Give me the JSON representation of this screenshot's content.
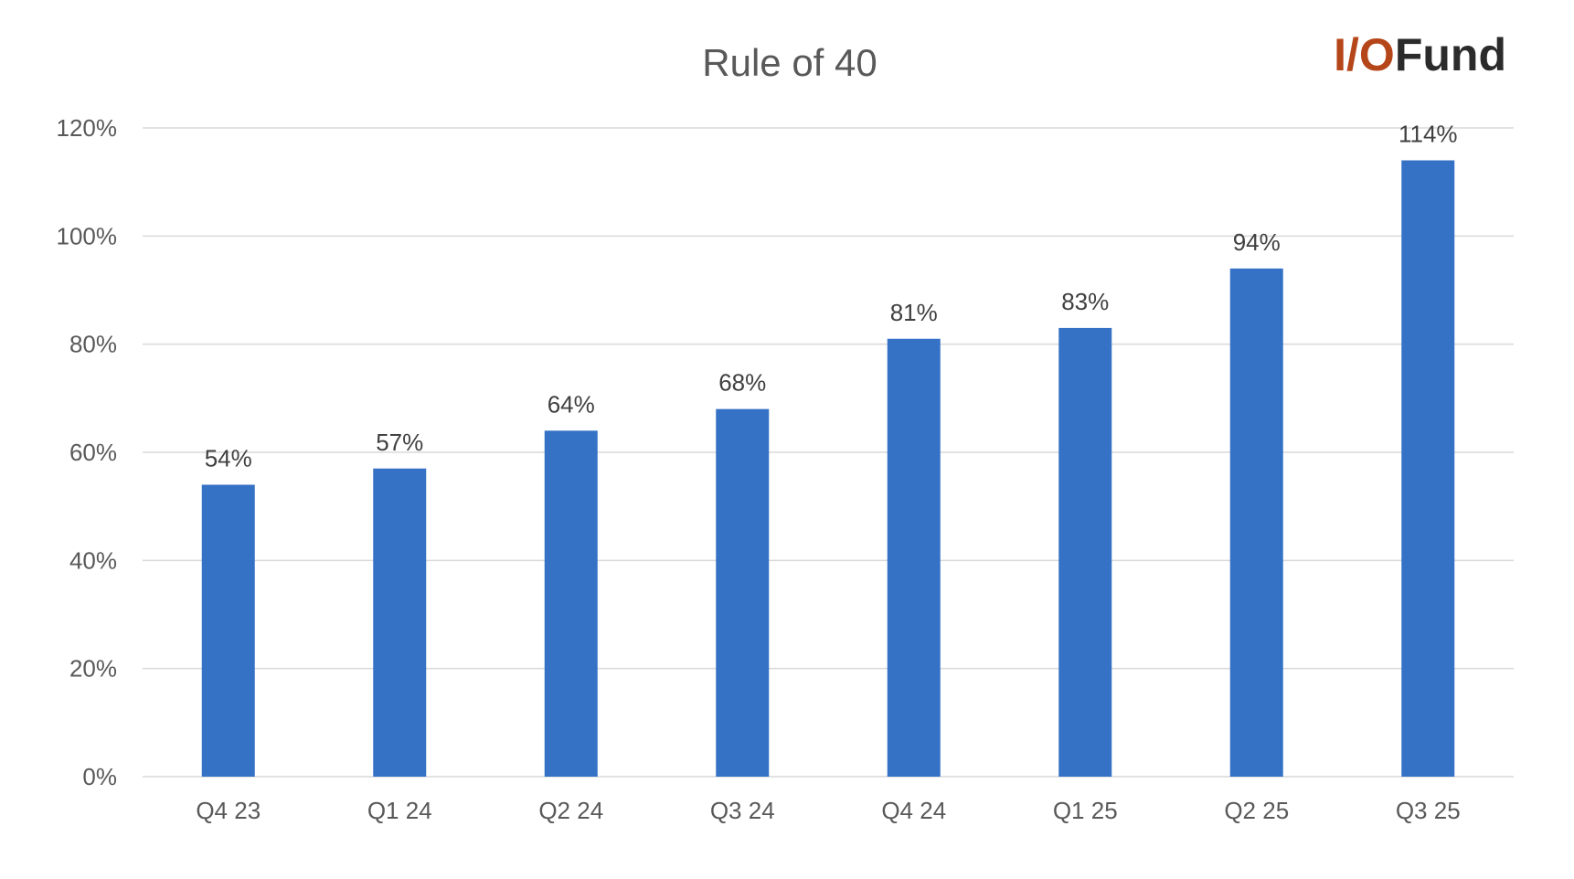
{
  "logo": {
    "prefix": "I/O",
    "suffix": "Fund",
    "prefix_color": "#b5461a",
    "suffix_color": "#2b2b2b"
  },
  "colors": {
    "bar": "#3572c6",
    "grid": "#d9d9d9",
    "text": "#595959"
  },
  "chart_data": {
    "type": "bar",
    "title": "Rule of 40",
    "xlabel": "",
    "ylabel": "",
    "categories": [
      "Q4 23",
      "Q1 24",
      "Q2 24",
      "Q3 24",
      "Q4 24",
      "Q1 25",
      "Q2 25",
      "Q3 25"
    ],
    "values": [
      54,
      57,
      64,
      68,
      81,
      83,
      94,
      114
    ],
    "data_labels": [
      "54%",
      "57%",
      "64%",
      "68%",
      "81%",
      "83%",
      "94%",
      "114%"
    ],
    "ylim": [
      0,
      120
    ],
    "yticks": [
      0,
      20,
      40,
      60,
      80,
      100,
      120
    ],
    "ytick_labels": [
      "0%",
      "20%",
      "40%",
      "60%",
      "80%",
      "100%",
      "120%"
    ],
    "grid": true,
    "legend": "none"
  }
}
